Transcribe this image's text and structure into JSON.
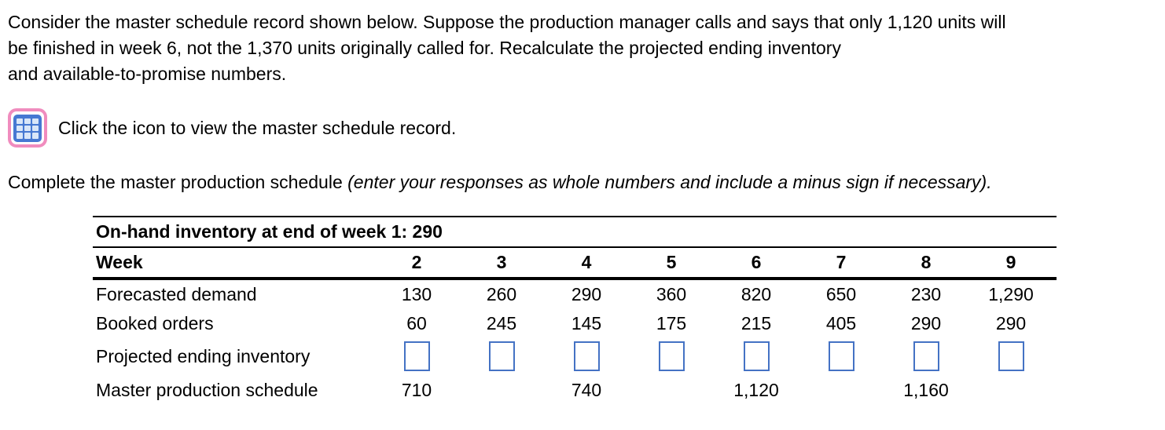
{
  "question": {
    "lines": [
      "Consider the master schedule record shown below. Suppose the production manager calls and says that only 1,120 units will",
      "be finished in week 6, not the 1,370 units originally called for. Recalculate the projected ending inventory",
      "and available-to-promise numbers."
    ]
  },
  "icon_row": {
    "icon": "table-grid-icon",
    "caption": "Click the icon to view the master schedule record."
  },
  "instruction": {
    "normal": "Complete the master production schedule ",
    "italic": "(enter your responses as whole numbers and include a minus sign if necessary)."
  },
  "colors": {
    "answer_box_border": "#4472c4",
    "icon_ring_pink": "#f08cbe",
    "icon_blue": "#4678d2",
    "icon_cell_light": "#d9e6f8"
  },
  "table": {
    "on_hand_header": "On-hand inventory at end of week 1: 290",
    "week_label": "Week",
    "weeks": [
      "2",
      "3",
      "4",
      "5",
      "6",
      "7",
      "8",
      "9"
    ],
    "rows": [
      {
        "label": "Forecasted demand",
        "type": "text",
        "values": [
          "130",
          "260",
          "290",
          "360",
          "820",
          "650",
          "230",
          "1,290"
        ]
      },
      {
        "label": "Booked orders",
        "type": "text",
        "values": [
          "60",
          "245",
          "145",
          "175",
          "215",
          "405",
          "290",
          "290"
        ]
      },
      {
        "label": "Projected ending inventory",
        "type": "input",
        "values": [
          "",
          "",
          "",
          "",
          "",
          "",
          "",
          ""
        ]
      },
      {
        "label": "Master production schedule",
        "type": "text",
        "values": [
          "710",
          "",
          "740",
          "",
          "1,120",
          "",
          "1,160",
          ""
        ]
      }
    ]
  }
}
